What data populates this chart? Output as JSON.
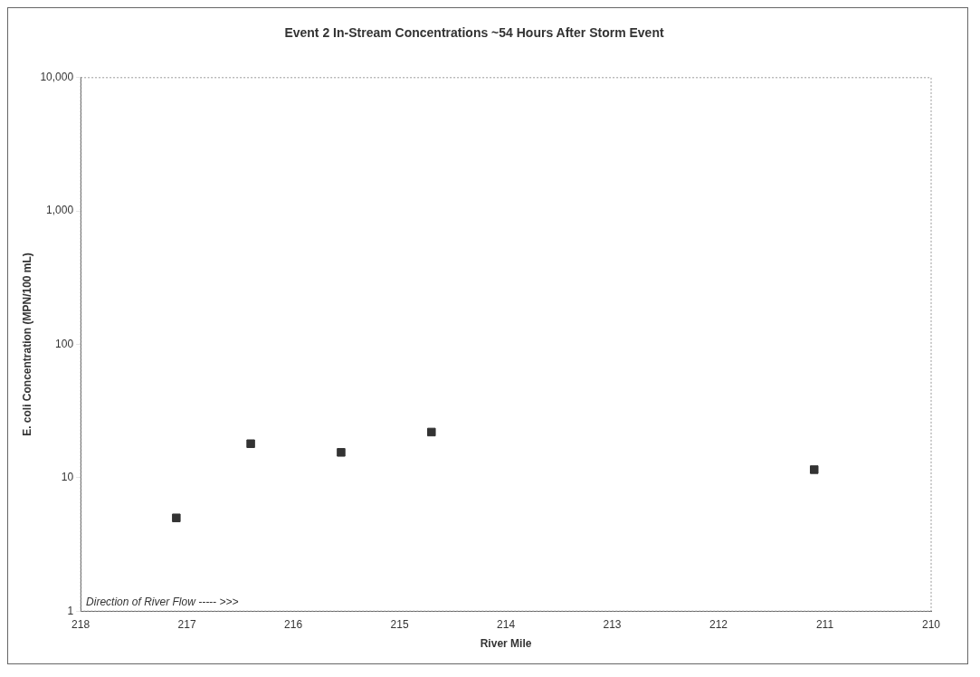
{
  "chart_data": {
    "type": "scatter",
    "title": "Event 2 In-Stream Concentrations ~54 Hours After Storm Event",
    "xlabel": "River Mile",
    "ylabel": "E. coli Concentration (MPN/100 mL)",
    "x": [
      217.1,
      216.4,
      215.55,
      214.7,
      211.1
    ],
    "series": [
      {
        "color": "#333333",
        "values": [
          5,
          18,
          15.5,
          22,
          11.5
        ]
      }
    ],
    "xlim": [
      218,
      210
    ],
    "xticks": [
      218,
      217,
      216,
      215,
      214,
      213,
      212,
      211,
      210
    ],
    "ylim": [
      1,
      10000
    ],
    "yticks": [
      1,
      10,
      100,
      {
        "value": 1000,
        "label": "1,000"
      },
      {
        "value": 10000,
        "label": "10,000"
      }
    ],
    "log": "y",
    "grid": false,
    "legend": false,
    "marker": "square",
    "annotations": [
      "Direction of River Flow ----- >>>"
    ]
  }
}
